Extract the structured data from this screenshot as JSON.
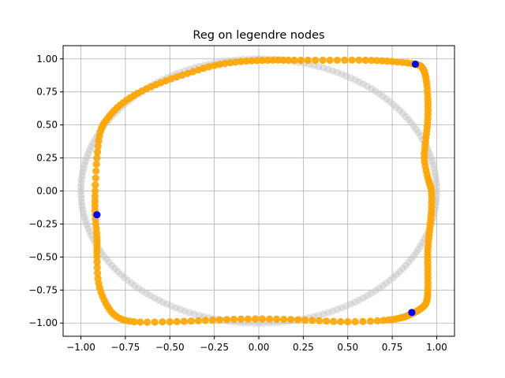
{
  "chart_data": {
    "type": "scatter",
    "title": "Reg on legendre nodes",
    "xlabel": "",
    "ylabel": "",
    "xlim": [
      -1.1,
      1.1
    ],
    "ylim": [
      -1.1,
      1.1
    ],
    "grid": true,
    "x_ticks": [
      -1.0,
      -0.75,
      -0.5,
      -0.25,
      0.0,
      0.25,
      0.5,
      0.75,
      1.0
    ],
    "y_ticks": [
      -1.0,
      -0.75,
      -0.5,
      -0.25,
      0.0,
      0.25,
      0.5,
      0.75,
      1.0
    ],
    "x_tick_labels": [
      "−1.00",
      "−0.75",
      "−0.50",
      "−0.25",
      "0.00",
      "0.25",
      "0.50",
      "0.75",
      "1.00"
    ],
    "y_tick_labels": [
      "−1.00",
      "−0.75",
      "−0.50",
      "−0.25",
      "0.00",
      "0.25",
      "0.50",
      "0.75",
      "1.00"
    ],
    "series": [
      {
        "shape": "ellipse",
        "center": [
          0.0,
          0.0
        ],
        "rx": 1.0,
        "ry": 1.0,
        "point_count": 220,
        "color": "#c8c8c8"
      },
      {
        "shape": "regularized-curve",
        "color": "#ffa500",
        "points": [
          [
            0.88,
            0.96
          ],
          [
            0.92,
            0.93
          ],
          [
            0.94,
            0.85
          ],
          [
            0.95,
            0.7
          ],
          [
            0.95,
            0.55
          ],
          [
            0.94,
            0.4
          ],
          [
            0.93,
            0.25
          ],
          [
            0.95,
            0.1
          ],
          [
            0.97,
            0.0
          ],
          [
            0.97,
            -0.15
          ],
          [
            0.96,
            -0.3
          ],
          [
            0.95,
            -0.45
          ],
          [
            0.95,
            -0.6
          ],
          [
            0.95,
            -0.75
          ],
          [
            0.94,
            -0.85
          ],
          [
            0.9,
            -0.9
          ],
          [
            0.86,
            -0.93
          ],
          [
            0.8,
            -0.96
          ],
          [
            0.7,
            -0.98
          ],
          [
            0.5,
            -0.99
          ],
          [
            0.3,
            -0.98
          ],
          [
            0.1,
            -0.97
          ],
          [
            -0.1,
            -0.97
          ],
          [
            -0.3,
            -0.98
          ],
          [
            -0.5,
            -0.99
          ],
          [
            -0.7,
            -0.99
          ],
          [
            -0.8,
            -0.95
          ],
          [
            -0.86,
            -0.85
          ],
          [
            -0.9,
            -0.7
          ],
          [
            -0.91,
            -0.5
          ],
          [
            -0.91,
            -0.35
          ],
          [
            -0.92,
            -0.18
          ],
          [
            -0.92,
            0.0
          ],
          [
            -0.91,
            0.25
          ],
          [
            -0.89,
            0.45
          ],
          [
            -0.85,
            0.55
          ],
          [
            -0.78,
            0.65
          ],
          [
            -0.68,
            0.74
          ],
          [
            -0.55,
            0.82
          ],
          [
            -0.4,
            0.89
          ],
          [
            -0.25,
            0.95
          ],
          [
            -0.1,
            0.98
          ],
          [
            0.05,
            0.99
          ],
          [
            0.2,
            0.99
          ],
          [
            0.4,
            0.99
          ],
          [
            0.6,
            0.99
          ],
          [
            0.75,
            0.98
          ],
          [
            0.88,
            0.96
          ]
        ]
      },
      {
        "shape": "points",
        "color": "#0000ff",
        "points": [
          [
            0.88,
            0.96
          ],
          [
            -0.91,
            -0.18
          ],
          [
            0.86,
            -0.92
          ]
        ]
      }
    ]
  }
}
